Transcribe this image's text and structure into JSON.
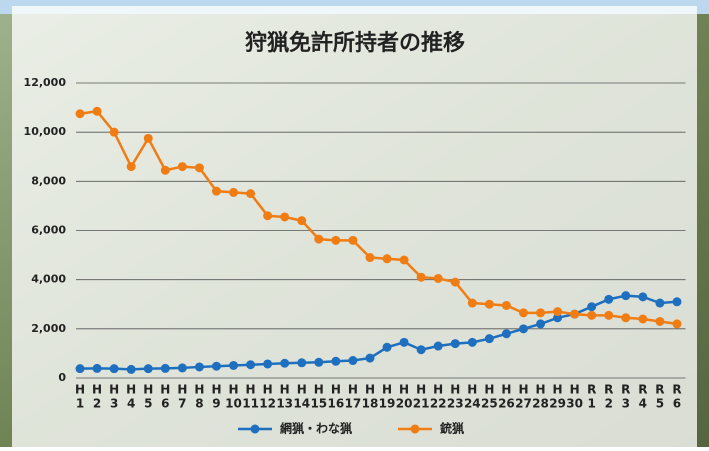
{
  "chart_data": {
    "type": "line",
    "title": "狩猟免許所持者の推移",
    "categories": [
      [
        "H",
        "1"
      ],
      [
        "H",
        "2"
      ],
      [
        "H",
        "3"
      ],
      [
        "H",
        "4"
      ],
      [
        "H",
        "5"
      ],
      [
        "H",
        "6"
      ],
      [
        "H",
        "7"
      ],
      [
        "H",
        "8"
      ],
      [
        "H",
        "9"
      ],
      [
        "H",
        "10"
      ],
      [
        "H",
        "11"
      ],
      [
        "H",
        "12"
      ],
      [
        "H",
        "13"
      ],
      [
        "H",
        "14"
      ],
      [
        "H",
        "15"
      ],
      [
        "H",
        "16"
      ],
      [
        "H",
        "17"
      ],
      [
        "H",
        "18"
      ],
      [
        "H",
        "19"
      ],
      [
        "H",
        "20"
      ],
      [
        "H",
        "21"
      ],
      [
        "H",
        "22"
      ],
      [
        "H",
        "23"
      ],
      [
        "H",
        "24"
      ],
      [
        "H",
        "25"
      ],
      [
        "H",
        "26"
      ],
      [
        "H",
        "27"
      ],
      [
        "H",
        "28"
      ],
      [
        "H",
        "29"
      ],
      [
        "H",
        "30"
      ],
      [
        "R",
        "1"
      ],
      [
        "R",
        "2"
      ],
      [
        "R",
        "3"
      ],
      [
        "R",
        "4"
      ],
      [
        "R",
        "5"
      ],
      [
        "R",
        "6"
      ]
    ],
    "series": [
      {
        "name": "網猟・わな猟",
        "color": "#1f6fbf",
        "values": [
          380,
          390,
          380,
          350,
          380,
          390,
          410,
          450,
          480,
          510,
          540,
          570,
          600,
          620,
          640,
          680,
          710,
          810,
          1250,
          1450,
          1150,
          1300,
          1400,
          1450,
          1600,
          1800,
          2000,
          2200,
          2450,
          2600,
          2900,
          3200,
          3350,
          3300,
          3050,
          3100
        ]
      },
      {
        "name": "銃猟",
        "color": "#ef7d14",
        "values": [
          10750,
          10850,
          10000,
          8600,
          9750,
          8450,
          8600,
          8550,
          7600,
          7550,
          7500,
          6600,
          6550,
          6400,
          5650,
          5600,
          5600,
          4900,
          4850,
          4800,
          4100,
          4050,
          3900,
          3050,
          3000,
          2950,
          2650,
          2650,
          2700,
          2600,
          2550,
          2550,
          2450,
          2400,
          2300,
          2200
        ]
      }
    ],
    "ylim": [
      0,
      12000
    ],
    "yticks": [
      0,
      {
        "value": 2000,
        "label": "2,000"
      },
      {
        "value": 4000,
        "label": "4,000"
      },
      {
        "value": 6000,
        "label": "6,000"
      },
      {
        "value": 8000,
        "label": "8,000"
      },
      {
        "value": 10000,
        "label": "10,000"
      },
      {
        "value": 12000,
        "label": "12,000"
      }
    ],
    "grid": true,
    "legend": "bottom"
  }
}
